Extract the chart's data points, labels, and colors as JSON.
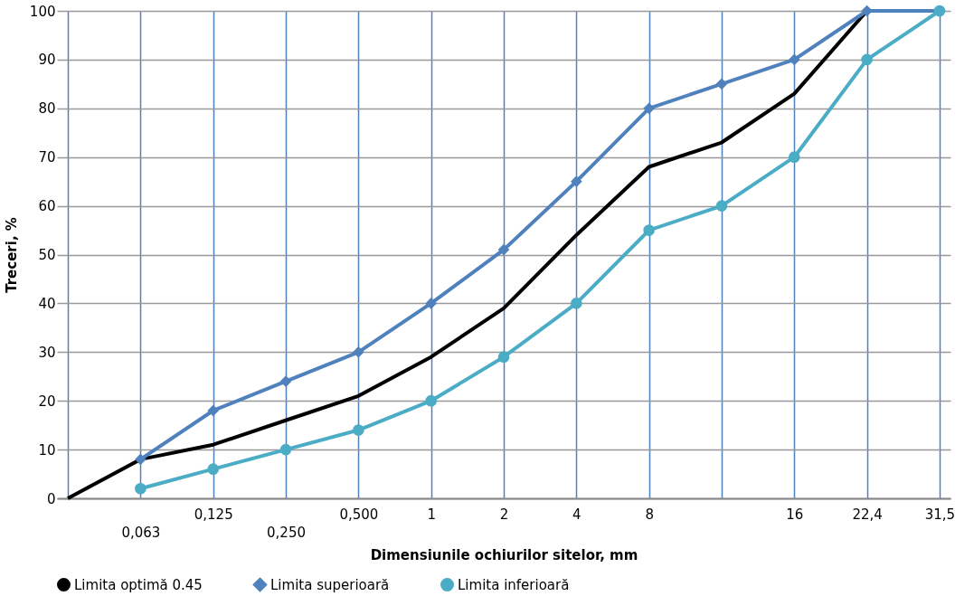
{
  "chart_data": {
    "type": "line",
    "xlabel": "Dimensiunile ochiurilor sitelor, mm",
    "ylabel": "Treceri, %",
    "categories": [
      null,
      "0,063",
      "0,125",
      "0,250",
      "0,500",
      "1",
      "2",
      "4",
      "8",
      null,
      "16",
      "22,4",
      "31,5"
    ],
    "ylim": [
      0,
      100
    ],
    "yticks": [
      0,
      10,
      20,
      30,
      40,
      50,
      60,
      70,
      80,
      90,
      100
    ],
    "grid": true,
    "legend": "bottom",
    "line_style": "solid",
    "series": [
      {
        "name": "Limita optimă 0.45",
        "color": "#000000",
        "marker": "none",
        "values": [
          0,
          8,
          11,
          16,
          21,
          29,
          39,
          54,
          68,
          73,
          83,
          100,
          null
        ]
      },
      {
        "name": "Limita superioară",
        "color": "#4f81bd",
        "marker": "diamond",
        "values": [
          null,
          8,
          18,
          24,
          30,
          40,
          51,
          65,
          80,
          85,
          90,
          100,
          100
        ]
      },
      {
        "name": "Limita inferioară",
        "color": "#4bacc6",
        "marker": "circle",
        "values": [
          null,
          2,
          6,
          10,
          14,
          20,
          29,
          40,
          55,
          60,
          70,
          90,
          100
        ]
      }
    ]
  }
}
